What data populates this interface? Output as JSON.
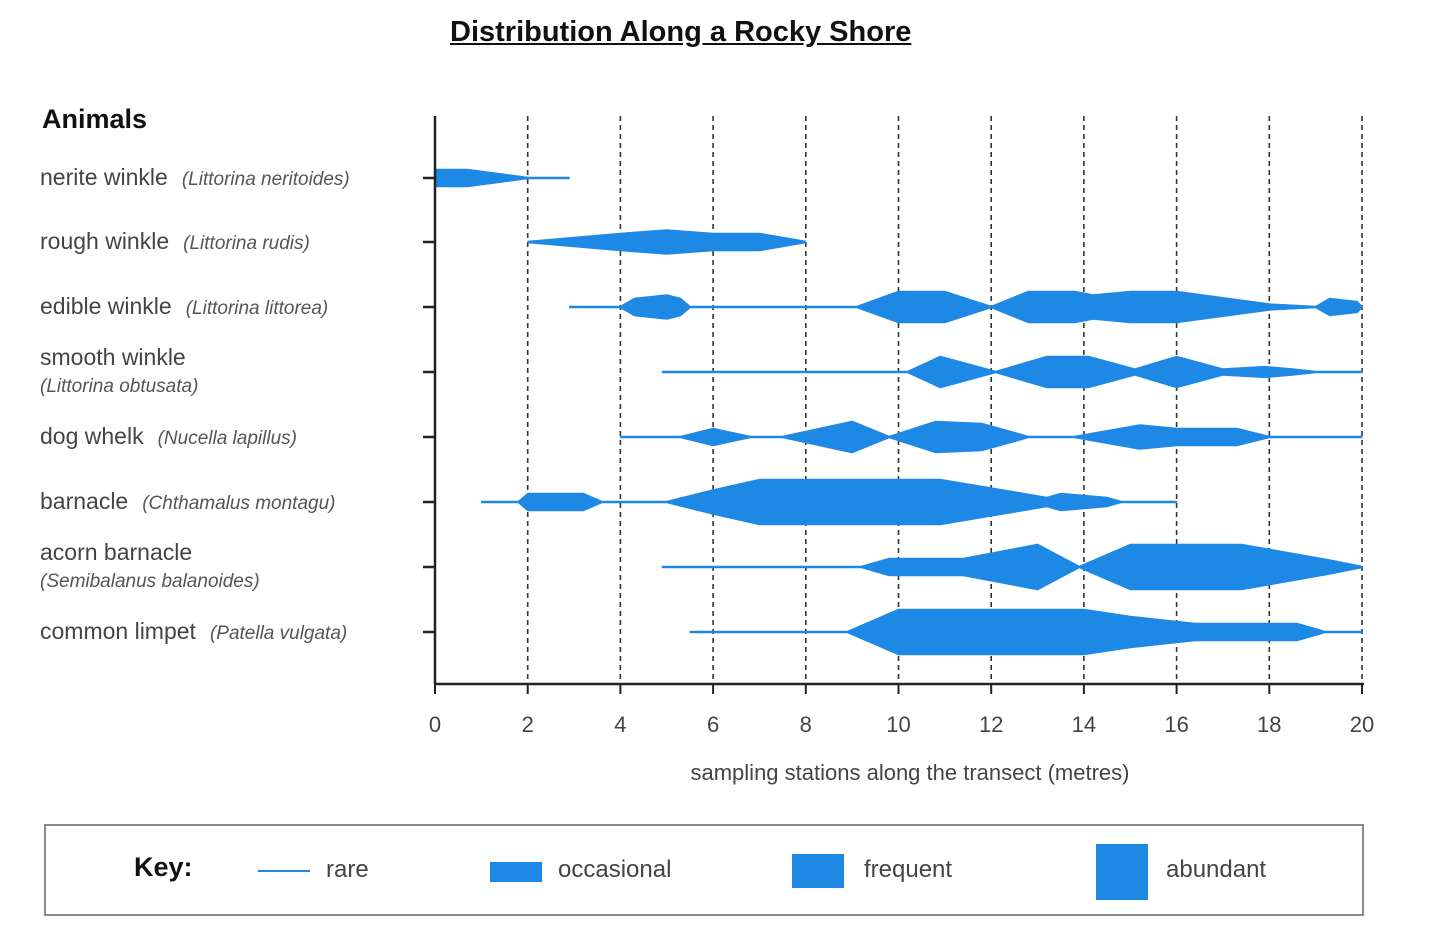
{
  "title": "Distribution Along a Rocky Shore",
  "animals_heading": "Animals",
  "species": [
    {
      "common": "nerite winkle",
      "latin": "(Littorina neritoides)",
      "two_line": false
    },
    {
      "common": "rough winkle",
      "latin": "(Littorina rudis)",
      "two_line": false
    },
    {
      "common": "edible winkle",
      "latin": "(Littorina littorea)",
      "two_line": false
    },
    {
      "common": "smooth winkle",
      "latin": "(Littorina obtusata)",
      "two_line": true
    },
    {
      "common": "dog whelk",
      "latin": "(Nucella lapillus)",
      "two_line": false
    },
    {
      "common": "barnacle",
      "latin": "(Chthamalus montagu)",
      "two_line": false
    },
    {
      "common": "acorn barnacle",
      "latin": "(Semibalanus balanoides)",
      "two_line": true
    },
    {
      "common": "common limpet",
      "latin": "(Patella vulgata)",
      "two_line": false
    }
  ],
  "key": {
    "title": "Key:",
    "items": [
      "rare",
      "occasional",
      "frequent",
      "abundant"
    ]
  },
  "colors": {
    "bar": "#1e88e5",
    "axis": "#222222"
  },
  "chart_data": {
    "type": "area",
    "title": "Distribution Along a Rocky Shore",
    "xlabel": "sampling stations along the transect (metres)",
    "ylabel": "Animals",
    "xlim": [
      0,
      20
    ],
    "xticks": [
      0,
      2,
      4,
      6,
      8,
      10,
      12,
      14,
      16,
      18,
      20
    ],
    "grid": "vertical dashed lines at each 2 m station",
    "legend_placement": "bottom",
    "abundance_scale": {
      "0": "absent",
      "1": "rare",
      "2": "occasional",
      "3": "frequent",
      "4": "abundant"
    },
    "series": [
      {
        "name": "nerite winkle",
        "points": [
          [
            0,
            2
          ],
          [
            0.7,
            2
          ],
          [
            2,
            1
          ],
          [
            2.9,
            1
          ]
        ]
      },
      {
        "name": "rough winkle",
        "points": [
          [
            2,
            1
          ],
          [
            4,
            2
          ],
          [
            5,
            2.5
          ],
          [
            6,
            2
          ],
          [
            7,
            2
          ],
          [
            8,
            1
          ]
        ]
      },
      {
        "name": "edible winkle",
        "points": [
          [
            2.9,
            1
          ],
          [
            4,
            1
          ],
          [
            4.3,
            2
          ],
          [
            5,
            2.5
          ],
          [
            5.3,
            2
          ],
          [
            5.5,
            1
          ],
          [
            9.1,
            1
          ],
          [
            10,
            3
          ],
          [
            11,
            3
          ],
          [
            12,
            1
          ],
          [
            12.8,
            3
          ],
          [
            13.8,
            3
          ],
          [
            14.2,
            2.5
          ],
          [
            15,
            3
          ],
          [
            16,
            3
          ],
          [
            18,
            1.3
          ],
          [
            19,
            1
          ],
          [
            19.3,
            2
          ],
          [
            19.9,
            1.6
          ],
          [
            20,
            1
          ]
        ]
      },
      {
        "name": "smooth winkle",
        "points": [
          [
            4.9,
            1
          ],
          [
            10.2,
            1
          ],
          [
            10.9,
            3
          ],
          [
            12.1,
            1
          ],
          [
            13.2,
            3
          ],
          [
            14.1,
            3
          ],
          [
            15.1,
            1.3
          ],
          [
            16,
            3
          ],
          [
            17,
            1.3
          ],
          [
            17.9,
            1.6
          ],
          [
            18.5,
            1.3
          ],
          [
            19,
            1
          ],
          [
            20,
            1
          ]
        ]
      },
      {
        "name": "dog whelk",
        "points": [
          [
            4,
            1
          ],
          [
            5.3,
            1
          ],
          [
            6,
            2
          ],
          [
            6.8,
            1
          ],
          [
            7.5,
            1
          ],
          [
            9,
            3
          ],
          [
            9.8,
            1
          ],
          [
            10.8,
            3
          ],
          [
            11.8,
            2.7
          ],
          [
            12.8,
            1
          ],
          [
            13.8,
            1
          ],
          [
            15.2,
            2.5
          ],
          [
            16,
            2
          ],
          [
            17.3,
            2
          ],
          [
            18,
            1
          ],
          [
            20,
            1
          ]
        ]
      },
      {
        "name": "barnacle",
        "points": [
          [
            1,
            1
          ],
          [
            1.8,
            1
          ],
          [
            2,
            2
          ],
          [
            3.2,
            2
          ],
          [
            3.6,
            1
          ],
          [
            5,
            1
          ],
          [
            6,
            2.5
          ],
          [
            7,
            4
          ],
          [
            10.9,
            4
          ],
          [
            13.2,
            1.5
          ],
          [
            13.5,
            2
          ],
          [
            14.5,
            1.5
          ],
          [
            14.8,
            1
          ],
          [
            16,
            1
          ]
        ]
      },
      {
        "name": "acorn barnacle",
        "points": [
          [
            4.9,
            1
          ],
          [
            9.2,
            1
          ],
          [
            9.8,
            2
          ],
          [
            11.4,
            2
          ],
          [
            13,
            4
          ],
          [
            13.9,
            1
          ],
          [
            15,
            4
          ],
          [
            17.4,
            4
          ],
          [
            19.3,
            1.8
          ],
          [
            20,
            1
          ]
        ]
      },
      {
        "name": "common limpet",
        "points": [
          [
            5.5,
            1
          ],
          [
            8.9,
            1
          ],
          [
            10,
            4
          ],
          [
            14,
            4
          ],
          [
            15,
            3
          ],
          [
            16.4,
            2
          ],
          [
            18.6,
            2
          ],
          [
            19.2,
            1
          ],
          [
            20,
            1
          ]
        ]
      }
    ],
    "key": [
      "rare",
      "occasional",
      "frequent",
      "abundant"
    ]
  }
}
